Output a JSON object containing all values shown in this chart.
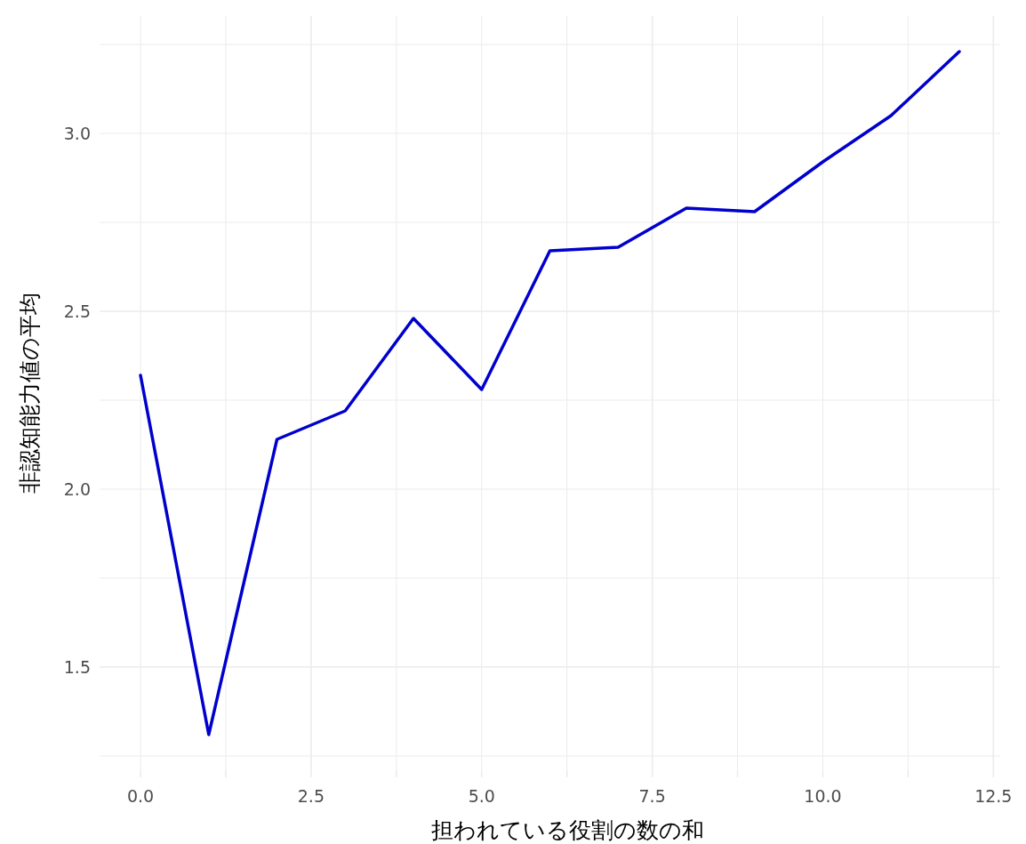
{
  "chart_data": {
    "type": "line",
    "xlabel": "担われている役割の数の和",
    "ylabel": "非認知能力値の平均",
    "x": [
      0,
      1,
      2,
      3,
      4,
      5,
      6,
      7,
      8,
      9,
      10,
      11,
      12
    ],
    "series": [
      {
        "color": "#0000cd",
        "values": [
          2.32,
          1.31,
          2.14,
          2.22,
          2.48,
          2.28,
          2.67,
          2.68,
          2.79,
          2.78,
          2.92,
          3.05,
          3.23
        ]
      }
    ],
    "xlim": [
      -0.6,
      12.6
    ],
    "ylim": [
      1.21,
      3.33
    ],
    "xticks": [
      {
        "value": 0,
        "label": "0.0"
      },
      {
        "value": 1.25,
        "label": null
      },
      2.5,
      {
        "value": 3.75,
        "label": null
      },
      {
        "value": 5,
        "label": "5.0"
      },
      {
        "value": 6.25,
        "label": null
      },
      7.5,
      {
        "value": 8.75,
        "label": null
      },
      {
        "value": 10,
        "label": "10.0"
      },
      {
        "value": 11.25,
        "label": null
      },
      12.5
    ],
    "yticks": [
      {
        "value": 1.25,
        "label": null
      },
      1.5,
      {
        "value": 1.75,
        "label": null
      },
      {
        "value": 2,
        "label": "2.0"
      },
      {
        "value": 2.25,
        "label": null
      },
      2.5,
      {
        "value": 2.75,
        "label": null
      },
      {
        "value": 3,
        "label": "3.0"
      },
      {
        "value": 3.25,
        "label": null
      }
    ],
    "grid": true,
    "marker": "none",
    "line_style": "solid"
  }
}
